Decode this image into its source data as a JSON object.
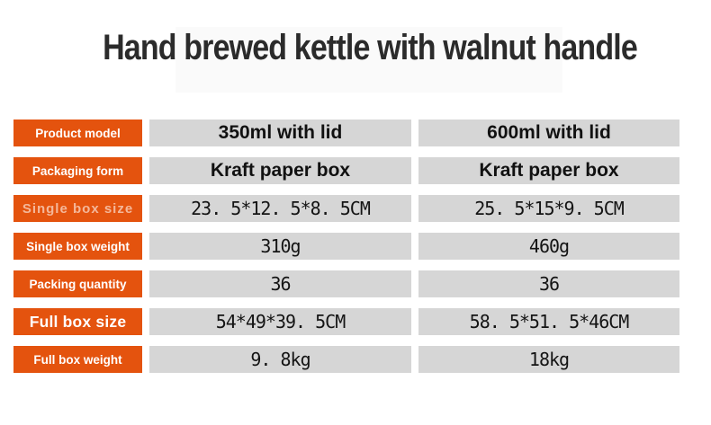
{
  "header": {
    "title": "Hand brewed kettle with walnut handle"
  },
  "colors": {
    "accent_orange": "#e4530e",
    "cell_gray": "#d6d6d6",
    "title_color": "#2b2b2b",
    "value_color": "#161616",
    "label_color": "#ffffff"
  },
  "table": {
    "rows": [
      {
        "label": "Product model",
        "col1": "350ml with lid",
        "col2": "600ml with lid"
      },
      {
        "label": "Packaging form",
        "col1": "Kraft paper box",
        "col2": "Kraft paper box"
      },
      {
        "label": "Single box size",
        "col1": "23. 5*12. 5*8. 5CM",
        "col2": "25. 5*15*9. 5CM"
      },
      {
        "label": "Single box weight",
        "col1": "310g",
        "col2": "460g"
      },
      {
        "label": "Packing quantity",
        "col1": "36",
        "col2": "36"
      },
      {
        "label": "Full box size",
        "col1": "54*49*39. 5CM",
        "col2": "58. 5*51. 5*46CM"
      },
      {
        "label": "Full box weight",
        "col1": "9. 8kg",
        "col2": "18kg"
      }
    ]
  }
}
